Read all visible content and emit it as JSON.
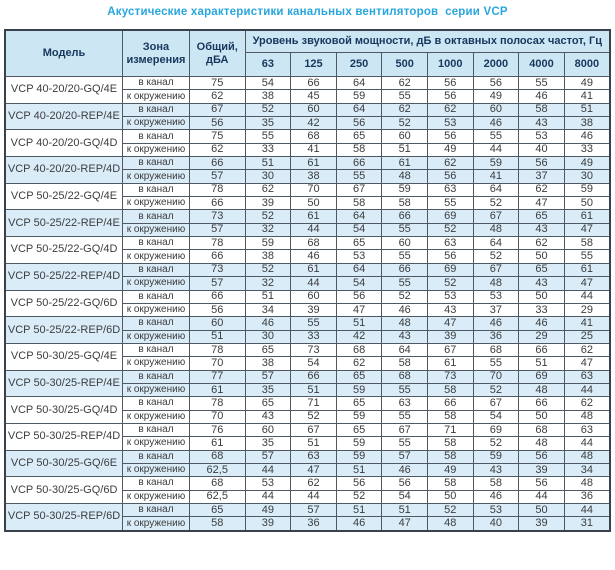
{
  "title": "Акустические характеристики канальных вентиляторов  серии VCP",
  "colors": {
    "title_blue": "#2aa6de",
    "header_bg": "#cde6f4",
    "header_text": "#17375d",
    "shaded_row_bg": "#d9ecf8",
    "border": "#4e5964",
    "data_text": "#3d3d3d"
  },
  "table": {
    "headers": {
      "model": "Модель",
      "zone": "Зона измерения",
      "total": "Общий, дБА",
      "band_group": "Уровень звуковой мощности, дБ в октавных полосах частот, Гц",
      "bands": [
        "63",
        "125",
        "250",
        "500",
        "1000",
        "2000",
        "4000",
        "8000"
      ]
    },
    "zone_labels": [
      "в канал",
      "к окружению"
    ],
    "rows": [
      {
        "model": "VCP 40-20/20-GQ/4E",
        "shaded": false,
        "in_duct": {
          "total": "75",
          "bands": [
            "54",
            "66",
            "64",
            "62",
            "56",
            "56",
            "55",
            "49"
          ]
        },
        "to_env": {
          "total": "62",
          "bands": [
            "38",
            "45",
            "59",
            "55",
            "56",
            "49",
            "46",
            "41"
          ]
        }
      },
      {
        "model": "VCP 40-20/20-REP/4E",
        "shaded": true,
        "in_duct": {
          "total": "67",
          "bands": [
            "52",
            "60",
            "64",
            "62",
            "62",
            "60",
            "58",
            "51"
          ]
        },
        "to_env": {
          "total": "56",
          "bands": [
            "35",
            "42",
            "56",
            "52",
            "53",
            "46",
            "43",
            "38"
          ]
        }
      },
      {
        "model": "VCP 40-20/20-GQ/4D",
        "shaded": false,
        "in_duct": {
          "total": "75",
          "bands": [
            "55",
            "68",
            "65",
            "60",
            "56",
            "55",
            "53",
            "46"
          ]
        },
        "to_env": {
          "total": "62",
          "bands": [
            "33",
            "41",
            "58",
            "51",
            "49",
            "44",
            "40",
            "33"
          ]
        }
      },
      {
        "model": "VCP 40-20/20-REP/4D",
        "shaded": true,
        "in_duct": {
          "total": "66",
          "bands": [
            "51",
            "61",
            "66",
            "61",
            "62",
            "59",
            "56",
            "49"
          ]
        },
        "to_env": {
          "total": "57",
          "bands": [
            "30",
            "38",
            "55",
            "48",
            "56",
            "41",
            "37",
            "30"
          ]
        }
      },
      {
        "model": "VCP 50-25/22-GQ/4E",
        "shaded": false,
        "in_duct": {
          "total": "78",
          "bands": [
            "62",
            "70",
            "67",
            "59",
            "63",
            "64",
            "62",
            "59"
          ]
        },
        "to_env": {
          "total": "66",
          "bands": [
            "39",
            "50",
            "58",
            "58",
            "55",
            "52",
            "47",
            "50"
          ]
        }
      },
      {
        "model": "VCP 50-25/22-REP/4E",
        "shaded": true,
        "in_duct": {
          "total": "73",
          "bands": [
            "52",
            "61",
            "64",
            "66",
            "69",
            "67",
            "65",
            "61"
          ]
        },
        "to_env": {
          "total": "57",
          "bands": [
            "32",
            "44",
            "54",
            "55",
            "52",
            "48",
            "43",
            "47"
          ]
        }
      },
      {
        "model": "VCP 50-25/22-GQ/4D",
        "shaded": false,
        "in_duct": {
          "total": "78",
          "bands": [
            "59",
            "68",
            "65",
            "60",
            "63",
            "64",
            "62",
            "58"
          ]
        },
        "to_env": {
          "total": "66",
          "bands": [
            "38",
            "46",
            "53",
            "55",
            "56",
            "52",
            "50",
            "55"
          ]
        }
      },
      {
        "model": "VCP 50-25/22-REP/4D",
        "shaded": true,
        "in_duct": {
          "total": "73",
          "bands": [
            "52",
            "61",
            "64",
            "66",
            "69",
            "67",
            "65",
            "61"
          ]
        },
        "to_env": {
          "total": "57",
          "bands": [
            "32",
            "44",
            "54",
            "55",
            "52",
            "48",
            "43",
            "47"
          ]
        }
      },
      {
        "model": "VCP 50-25/22-GQ/6D",
        "shaded": false,
        "in_duct": {
          "total": "66",
          "bands": [
            "51",
            "60",
            "56",
            "52",
            "53",
            "53",
            "50",
            "44"
          ]
        },
        "to_env": {
          "total": "56",
          "bands": [
            "34",
            "39",
            "47",
            "46",
            "43",
            "37",
            "33",
            "29"
          ]
        }
      },
      {
        "model": "VCP 50-25/22-REP/6D",
        "shaded": true,
        "in_duct": {
          "total": "60",
          "bands": [
            "46",
            "55",
            "51",
            "48",
            "47",
            "46",
            "46",
            "41"
          ]
        },
        "to_env": {
          "total": "51",
          "bands": [
            "30",
            "33",
            "42",
            "43",
            "39",
            "36",
            "29",
            "25"
          ]
        }
      },
      {
        "model": "VCP 50-30/25-GQ/4E",
        "shaded": false,
        "in_duct": {
          "total": "78",
          "bands": [
            "65",
            "73",
            "68",
            "64",
            "67",
            "68",
            "66",
            "62"
          ]
        },
        "to_env": {
          "total": "70",
          "bands": [
            "38",
            "54",
            "62",
            "58",
            "61",
            "55",
            "51",
            "47"
          ]
        }
      },
      {
        "model": "VCP 50-30/25-REP/4E",
        "shaded": true,
        "in_duct": {
          "total": "77",
          "bands": [
            "57",
            "66",
            "65",
            "68",
            "73",
            "70",
            "69",
            "63"
          ]
        },
        "to_env": {
          "total": "61",
          "bands": [
            "35",
            "51",
            "59",
            "55",
            "58",
            "52",
            "48",
            "44"
          ]
        }
      },
      {
        "model": "VCP 50-30/25-GQ/4D",
        "shaded": false,
        "in_duct": {
          "total": "78",
          "bands": [
            "65",
            "71",
            "65",
            "63",
            "66",
            "67",
            "66",
            "62"
          ]
        },
        "to_env": {
          "total": "70",
          "bands": [
            "43",
            "52",
            "59",
            "55",
            "58",
            "54",
            "50",
            "48"
          ]
        }
      },
      {
        "model": "VCP 50-30/25-REP/4D",
        "shaded": false,
        "in_duct": {
          "total": "76",
          "bands": [
            "60",
            "67",
            "65",
            "67",
            "71",
            "69",
            "68",
            "63"
          ]
        },
        "to_env": {
          "total": "61",
          "bands": [
            "35",
            "51",
            "59",
            "55",
            "58",
            "52",
            "48",
            "44"
          ]
        }
      },
      {
        "model": "VCP 50-30/25-GQ/6E",
        "shaded": true,
        "in_duct": {
          "total": "68",
          "bands": [
            "57",
            "63",
            "59",
            "57",
            "58",
            "59",
            "56",
            "48"
          ]
        },
        "to_env": {
          "total": "62,5",
          "bands": [
            "44",
            "47",
            "51",
            "46",
            "49",
            "43",
            "39",
            "34"
          ]
        }
      },
      {
        "model": "VCP 50-30/25-GQ/6D",
        "shaded": false,
        "in_duct": {
          "total": "68",
          "bands": [
            "53",
            "62",
            "56",
            "56",
            "58",
            "58",
            "56",
            "48"
          ]
        },
        "to_env": {
          "total": "62,5",
          "bands": [
            "44",
            "44",
            "52",
            "54",
            "50",
            "46",
            "44",
            "36"
          ]
        }
      },
      {
        "model": "VCP 50-30/25-REP/6D",
        "shaded": true,
        "in_duct": {
          "total": "65",
          "bands": [
            "49",
            "57",
            "51",
            "51",
            "52",
            "53",
            "50",
            "44"
          ]
        },
        "to_env": {
          "total": "58",
          "bands": [
            "39",
            "36",
            "46",
            "47",
            "48",
            "40",
            "39",
            "31"
          ]
        }
      }
    ]
  }
}
